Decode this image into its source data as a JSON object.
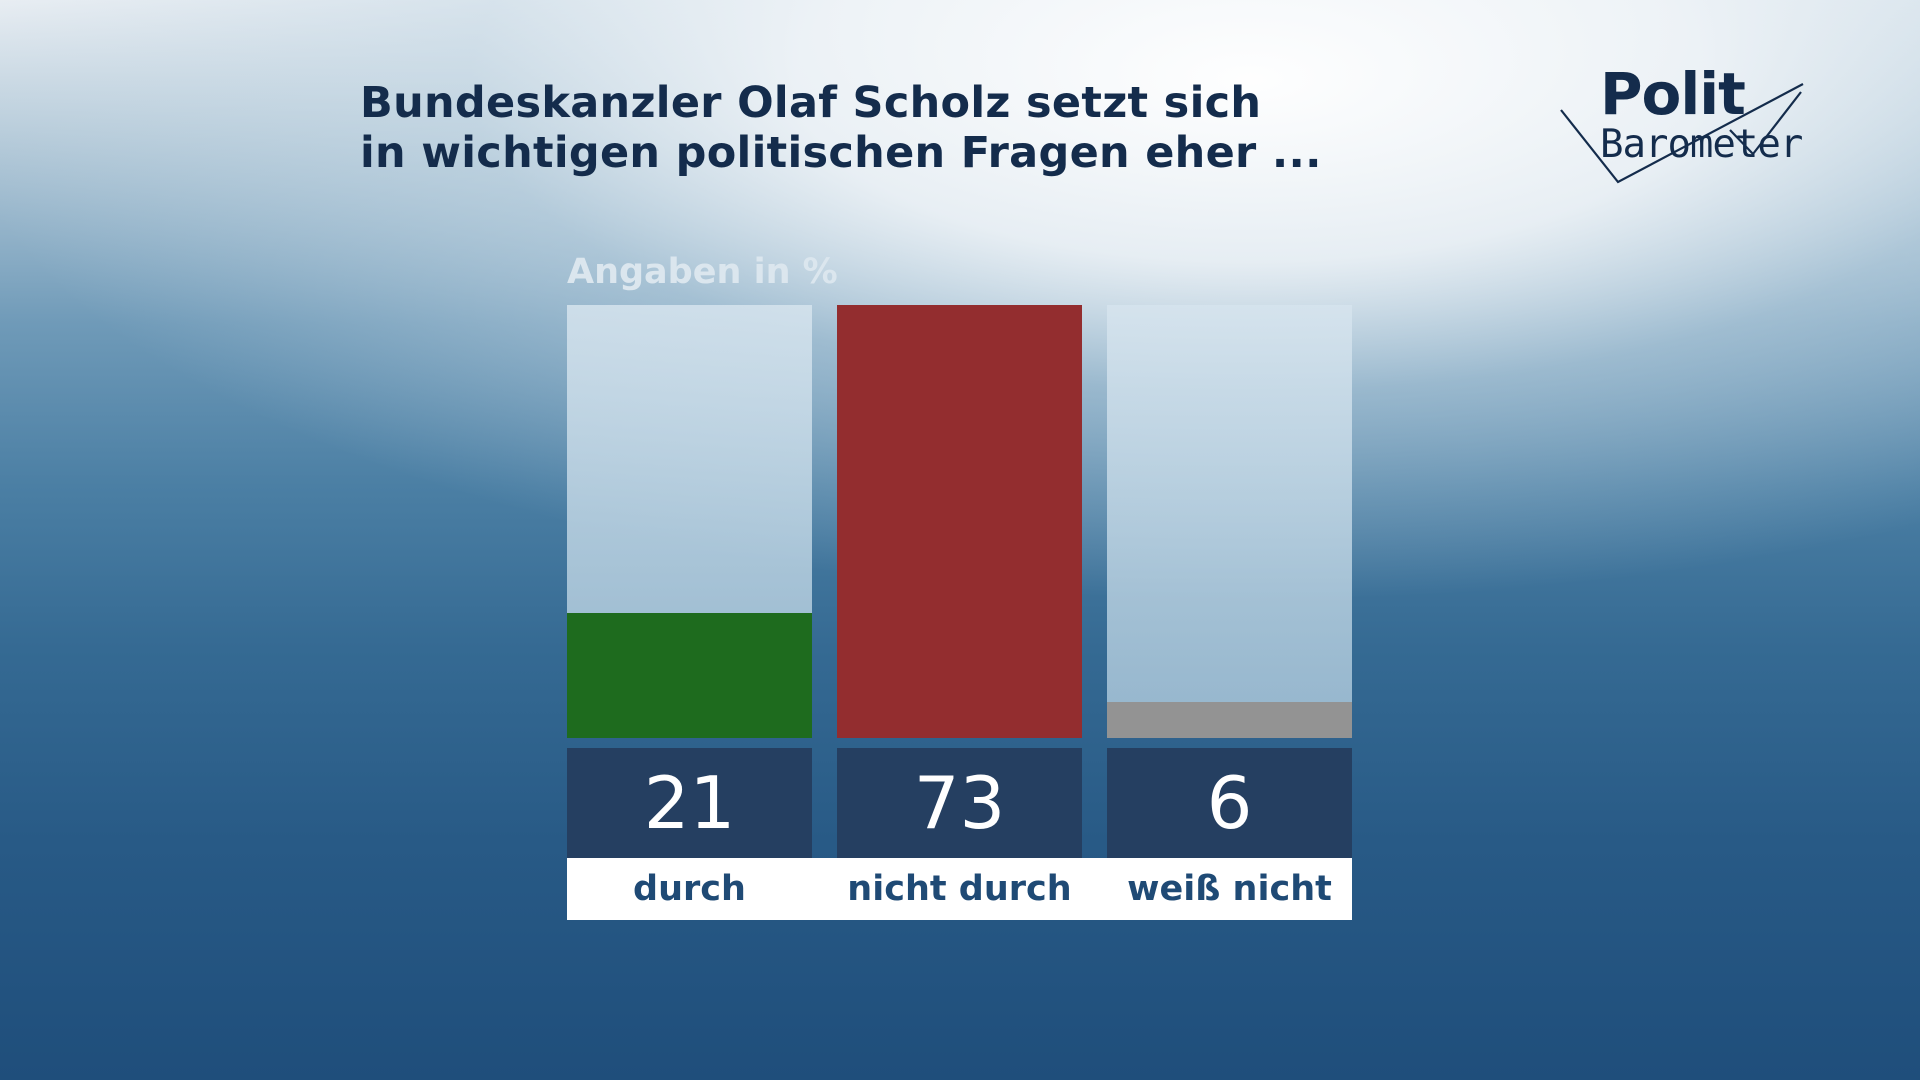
{
  "title": {
    "line1": "Bundeskanzler Olaf Scholz setzt sich",
    "line2": "in wichtigen politischen Fragen eher ..."
  },
  "logo": {
    "line1": "Polit",
    "line2": "Barometer",
    "name": "politbarometer-logo"
  },
  "colors": {
    "durch": "#1e6b1e",
    "nicht_durch": "#932d2f",
    "weiss_nicht": "#939393",
    "value_box": "#253f61",
    "title": "#142c4c"
  },
  "chart_data": {
    "type": "bar",
    "unit_label": "Angaben in %",
    "categories": [
      "durch",
      "nicht durch",
      "weiß nicht"
    ],
    "values": [
      21,
      73,
      6
    ],
    "colors": [
      "#1e6b1e",
      "#932d2f",
      "#939393"
    ],
    "ylim": [
      0,
      73
    ],
    "grid": false
  }
}
